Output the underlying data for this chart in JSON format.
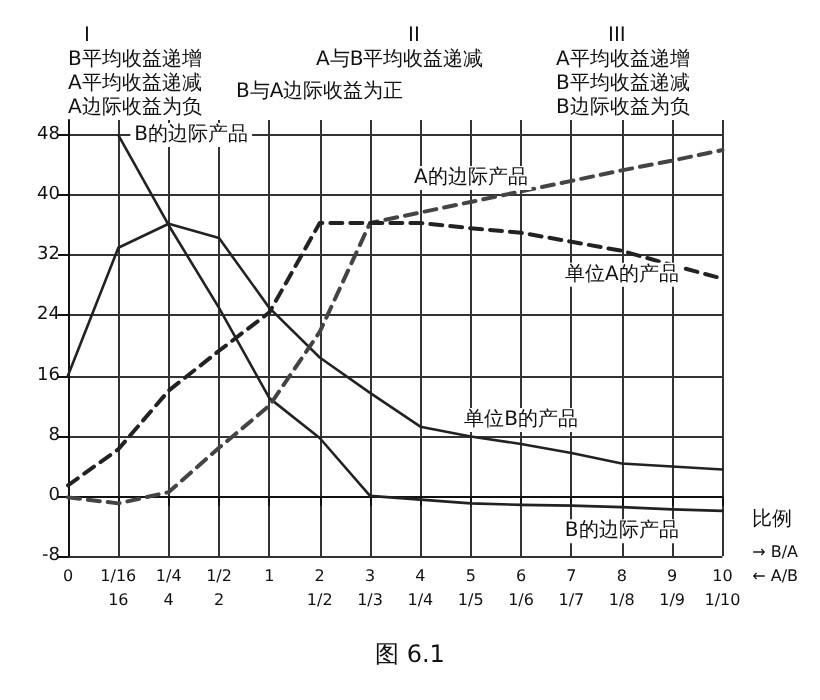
{
  "chart_data": {
    "type": "line",
    "title": "图 6.1",
    "xlabel": "→ B/A\n← A/B",
    "annotations": [
      "I",
      "B平均收益递增\nA平均收益递减\nA边际收益为负",
      "II",
      "A与B平均收益递减",
      "B与A边际收益为正",
      "III",
      "A平均收益递增\nB平均收益递减\nB边际收益为负",
      "比例"
    ],
    "categories": [
      "0",
      "1/16\n16",
      "1/4\n4",
      "1/2\n2",
      "1",
      "2\n1/2",
      "3\n1/3",
      "4\n1/4",
      "5\n1/5",
      "6\n1/6",
      "7\n1/7",
      "8\n1/8",
      "9\n1/9",
      "10\n1/10"
    ],
    "ylim": [
      -8,
      50
    ],
    "yticks": [
      -8,
      0,
      8,
      16,
      24,
      32,
      40,
      48
    ],
    "grid": true,
    "legend": false,
    "marker": "none",
    "series": [
      {
        "name": "B的边际产品",
        "color": "#222222",
        "line_style": "solid",
        "values": [
          null,
          48,
          36,
          25,
          13,
          7.7,
          0,
          -0.5,
          -1,
          -1.2,
          -1.3,
          -1.5,
          -1.8,
          -2
        ]
      },
      {
        "name": "单位B的产品",
        "color": "#222222",
        "line_style": "solid",
        "values": [
          16,
          33,
          36.2,
          34.3,
          25,
          18.4,
          13.7,
          9.2,
          7.9,
          6.9,
          5.7,
          4.3,
          3.9,
          3.5
        ]
      },
      {
        "name": "A的边际产品",
        "color": "#444444",
        "line_style": "dashed",
        "values": [
          -0.2,
          -1,
          0.5,
          6.4,
          12,
          21.8,
          36.3,
          37.7,
          39.1,
          40.5,
          41.9,
          43.3,
          44.6,
          46
        ]
      },
      {
        "name": "单位A的产品",
        "color": "#222222",
        "line_style": "dashed",
        "values": [
          1.4,
          6.2,
          14,
          19.3,
          24.4,
          36.3,
          36.3,
          36.3,
          35.6,
          35,
          33.8,
          32.6,
          30.7,
          28.9
        ]
      }
    ]
  }
}
